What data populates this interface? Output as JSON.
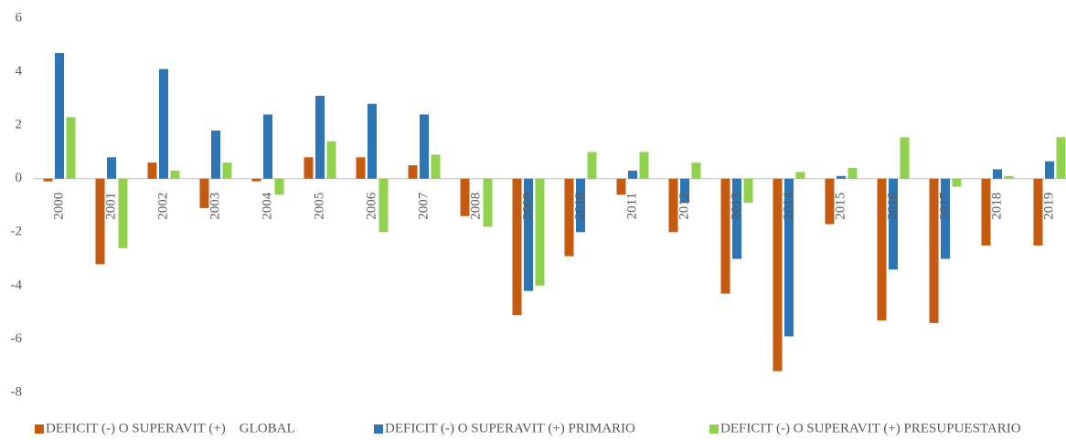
{
  "chart_data": {
    "type": "bar",
    "categories": [
      "2000",
      "2001",
      "2002",
      "2003",
      "2004",
      "2005",
      "2006",
      "2007",
      "2008",
      "2009",
      "2010",
      "2011",
      "2012",
      "2013",
      "2014",
      "2015",
      "2016",
      "2017",
      "2018",
      "2019"
    ],
    "series": [
      {
        "name": "DEFICIT (-) O SUPERAVIT (+)    GLOBAL",
        "color": "#c55a11",
        "values": [
          -0.1,
          -3.2,
          0.6,
          -1.1,
          -0.1,
          0.8,
          0.8,
          0.5,
          -1.4,
          -5.1,
          -2.9,
          -0.6,
          -2.0,
          -4.3,
          -7.2,
          -1.7,
          -5.3,
          -5.4,
          -2.5,
          -2.5
        ]
      },
      {
        "name": "DEFICIT (-) O SUPERAVIT (+) PRIMARIO",
        "color": "#2e75b6",
        "values": [
          4.7,
          0.8,
          4.1,
          1.8,
          2.4,
          3.1,
          2.8,
          2.4,
          0,
          -4.2,
          -2.0,
          0.3,
          -0.9,
          -3.0,
          -5.9,
          0.1,
          -3.4,
          -3.0,
          0.35,
          0.65
        ]
      },
      {
        "name": "DEFICIT (-) O SUPERAVIT (+) PRESUPUESTARIO",
        "color": "#92d050",
        "values": [
          2.3,
          -2.6,
          0.3,
          0.6,
          -0.6,
          1.4,
          -2.0,
          0.9,
          -1.8,
          -4.0,
          1.0,
          1.0,
          0.6,
          -0.9,
          0.25,
          0.4,
          1.55,
          -0.3,
          0.1,
          1.55
        ]
      }
    ],
    "ylim": [
      -8,
      6
    ],
    "yticks": [
      -8,
      -6,
      -4,
      -2,
      0,
      2,
      4,
      6
    ],
    "grid": false,
    "legend": "bottom"
  }
}
